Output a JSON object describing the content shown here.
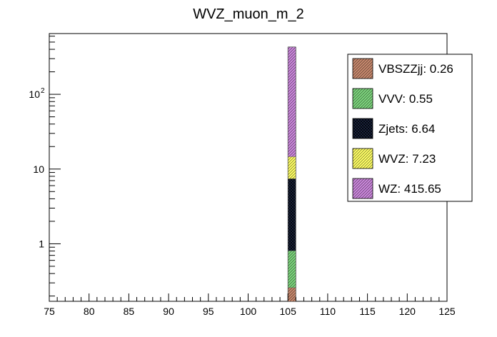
{
  "chart_data": {
    "type": "bar",
    "stacked": true,
    "title": "WVZ_muon_m_2",
    "xlabel": "",
    "ylabel": "",
    "xlim": [
      75,
      125
    ],
    "ylim": [
      0.17,
      650
    ],
    "y_scale": "log",
    "grid": false,
    "legend_position": "top-right",
    "x_ticks": [
      "75",
      "80",
      "85",
      "90",
      "95",
      "100",
      "105",
      "110",
      "115",
      "120",
      "125"
    ],
    "y_ticks": [
      {
        "value": 1,
        "label": "1"
      },
      {
        "value": 10,
        "label": "10"
      },
      {
        "value": 100,
        "label": "10",
        "exponent": "2"
      }
    ],
    "bin": [
      105,
      106
    ],
    "series": [
      {
        "name": "VBSZZjj",
        "value": 0.26,
        "legend": "VBSZZjj: 0.26",
        "color": "#c8896e",
        "hatch": "diag"
      },
      {
        "name": "VVV",
        "value": 0.55,
        "legend": "VVV: 0.55",
        "color": "#7ed67e",
        "hatch": "diag"
      },
      {
        "name": "Zjets",
        "value": 6.64,
        "legend": "Zjets: 6.64",
        "color": "#1e2a4a",
        "hatch": "cross"
      },
      {
        "name": "WVZ",
        "value": 7.23,
        "legend": "WVZ: 7.23",
        "color": "#ffff66",
        "hatch": "diag"
      },
      {
        "name": "WZ",
        "value": 415.65,
        "legend": "WZ: 415.65",
        "color": "#cc88dd",
        "hatch": "diag"
      }
    ]
  }
}
